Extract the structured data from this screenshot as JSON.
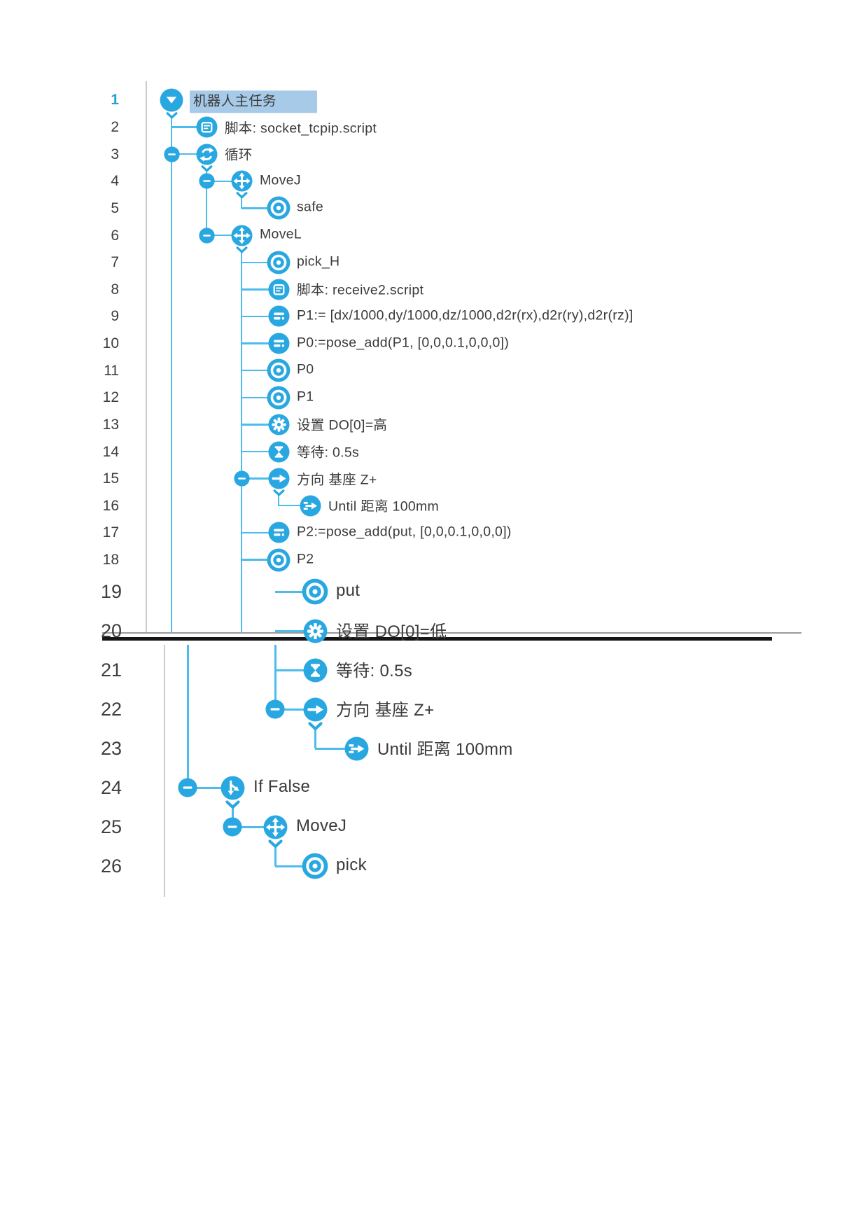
{
  "colors": {
    "icon_blue": "#29a7e1",
    "line_blue": "#4cbcec",
    "text": "#3a3a3a",
    "number_text": "#3e3e3e",
    "selected_number": "#2b9fd9",
    "selected_bg": "#a6cae7",
    "gutter_line": "#cbcbcb",
    "page_break_gray": "#9b9b9b",
    "page_break_black": "#161616",
    "background": "#ffffff"
  },
  "program_tree": {
    "rows": [
      {
        "num": "1",
        "label": "机器人主任务",
        "icon": "main-task",
        "depth": 0,
        "section": "upper",
        "collapse": false,
        "chevron": true,
        "selected": true
      },
      {
        "num": "2",
        "label": "脚本: socket_tcpip.script",
        "icon": "script",
        "depth": 1,
        "section": "upper",
        "collapse": false,
        "chevron": false,
        "selected": false
      },
      {
        "num": "3",
        "label": "循环",
        "icon": "loop",
        "depth": 1,
        "section": "upper",
        "collapse": true,
        "chevron": true,
        "selected": false
      },
      {
        "num": "4",
        "label": "MoveJ",
        "icon": "move",
        "depth": 2,
        "section": "upper",
        "collapse": true,
        "chevron": true,
        "selected": false
      },
      {
        "num": "5",
        "label": "safe",
        "icon": "waypoint",
        "depth": 3,
        "section": "upper",
        "collapse": false,
        "chevron": false,
        "selected": false
      },
      {
        "num": "6",
        "label": "MoveL",
        "icon": "move",
        "depth": 2,
        "section": "upper",
        "collapse": true,
        "chevron": true,
        "selected": false
      },
      {
        "num": "7",
        "label": "pick_H",
        "icon": "waypoint",
        "depth": 3,
        "section": "upper",
        "collapse": false,
        "chevron": false,
        "selected": false
      },
      {
        "num": "8",
        "label": "脚本: receive2.script",
        "icon": "script",
        "depth": 3,
        "section": "upper",
        "collapse": false,
        "chevron": false,
        "selected": false
      },
      {
        "num": "9",
        "label": "P1:= [dx/1000,dy/1000,dz/1000,d2r(rx),d2r(ry),d2r(rz)]",
        "icon": "assign",
        "depth": 3,
        "section": "upper",
        "collapse": false,
        "chevron": false,
        "selected": false
      },
      {
        "num": "10",
        "label": "P0:=pose_add(P1, [0,0,0.1,0,0,0])",
        "icon": "assign",
        "depth": 3,
        "section": "upper",
        "collapse": false,
        "chevron": false,
        "selected": false
      },
      {
        "num": "11",
        "label": "P0",
        "icon": "waypoint",
        "depth": 3,
        "section": "upper",
        "collapse": false,
        "chevron": false,
        "selected": false
      },
      {
        "num": "12",
        "label": "P1",
        "icon": "waypoint",
        "depth": 3,
        "section": "upper",
        "collapse": false,
        "chevron": false,
        "selected": false
      },
      {
        "num": "13",
        "label": "设置 DO[0]=高",
        "icon": "gear",
        "depth": 3,
        "section": "upper",
        "collapse": false,
        "chevron": false,
        "selected": false
      },
      {
        "num": "14",
        "label": "等待: 0.5s",
        "icon": "hourglass",
        "depth": 3,
        "section": "upper",
        "collapse": false,
        "chevron": false,
        "selected": false
      },
      {
        "num": "15",
        "label": "方向 基座 Z+",
        "icon": "direction",
        "depth": 3,
        "section": "upper",
        "collapse": true,
        "chevron": true,
        "selected": false
      },
      {
        "num": "16",
        "label": "Until 距离 100mm",
        "icon": "until",
        "depth": 4,
        "section": "upper",
        "collapse": false,
        "chevron": false,
        "selected": false
      },
      {
        "num": "17",
        "label": "P2:=pose_add(put, [0,0,0.1,0,0,0])",
        "icon": "assign",
        "depth": 3,
        "section": "upper",
        "collapse": false,
        "chevron": false,
        "selected": false
      },
      {
        "num": "18",
        "label": "P2",
        "icon": "waypoint",
        "depth": 3,
        "section": "upper",
        "collapse": false,
        "chevron": false,
        "selected": false
      },
      {
        "num": "19",
        "label": "put",
        "icon": "waypoint",
        "depth": 3,
        "section": "lower",
        "collapse": false,
        "chevron": false,
        "selected": false
      },
      {
        "num": "20",
        "label": "设置 DO[0]=低",
        "icon": "gear",
        "depth": 3,
        "section": "lower",
        "collapse": false,
        "chevron": false,
        "selected": false
      },
      {
        "num": "21",
        "label": "等待: 0.5s",
        "icon": "hourglass",
        "depth": 3,
        "section": "lower",
        "collapse": false,
        "chevron": false,
        "selected": false
      },
      {
        "num": "22",
        "label": "方向 基座 Z+",
        "icon": "direction",
        "depth": 3,
        "section": "lower",
        "collapse": true,
        "chevron": true,
        "selected": false
      },
      {
        "num": "23",
        "label": "Until 距离 100mm",
        "icon": "until",
        "depth": 4,
        "section": "lower",
        "collapse": false,
        "chevron": false,
        "selected": false
      },
      {
        "num": "24",
        "label": "If False",
        "icon": "if",
        "depth": 1,
        "section": "lower",
        "collapse": true,
        "chevron": true,
        "selected": false
      },
      {
        "num": "25",
        "label": "MoveJ",
        "icon": "move",
        "depth": 2,
        "section": "lower",
        "collapse": true,
        "chevron": true,
        "selected": false
      },
      {
        "num": "26",
        "label": "pick",
        "icon": "waypoint",
        "depth": 3,
        "section": "lower",
        "collapse": false,
        "chevron": false,
        "selected": false
      }
    ]
  }
}
